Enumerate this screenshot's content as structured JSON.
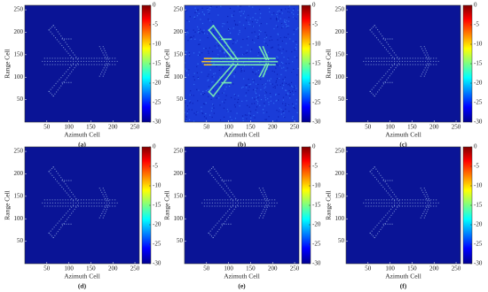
{
  "chart_data": [
    {
      "type": "heatmap",
      "xlabel": "Azimuth Cell",
      "ylabel": "Range Cell",
      "caption": "(a)",
      "xlim": [
        0,
        260
      ],
      "ylim": [
        0,
        260
      ],
      "xticks": [
        50,
        100,
        150,
        200,
        250
      ],
      "yticks": [
        50,
        100,
        150,
        200,
        250
      ],
      "clim": [
        -30,
        0
      ],
      "cticks": [
        0,
        -5,
        -10,
        -15,
        -20,
        -25,
        -30
      ],
      "colormap": "jet",
      "background": "#0a1496",
      "color": "#8fa8e0"
    },
    {
      "type": "heatmap",
      "xlabel": "Azimuth Cell",
      "ylabel": "Range Cell",
      "caption": "(b)",
      "xlim": [
        0,
        260
      ],
      "ylim": [
        0,
        260
      ],
      "xticks": [
        50,
        100,
        150,
        200,
        250
      ],
      "yticks": [
        50,
        100,
        150,
        200,
        250
      ],
      "clim": [
        -30,
        0
      ],
      "cticks": [
        0,
        -5,
        -10,
        -15,
        -20,
        -25,
        -30
      ],
      "colormap": "jet",
      "background": "#1a3cd8",
      "color": "#7cf0b0"
    },
    {
      "type": "heatmap",
      "xlabel": "Azimuth Cell",
      "ylabel": "Range Cell",
      "caption": "(c)",
      "xlim": [
        0,
        260
      ],
      "ylim": [
        0,
        260
      ],
      "xticks": [
        50,
        100,
        150,
        200,
        250
      ],
      "yticks": [
        50,
        100,
        150,
        200,
        250
      ],
      "clim": [
        -30,
        0
      ],
      "cticks": [
        0,
        -5,
        -10,
        -15,
        -20,
        -25,
        -30
      ],
      "colormap": "jet",
      "background": "#0a1496",
      "color": "#8fa8e0"
    },
    {
      "type": "heatmap",
      "xlabel": "Azimuth Cell",
      "ylabel": "Range Cell",
      "caption": "(d)",
      "xlim": [
        0,
        260
      ],
      "ylim": [
        0,
        260
      ],
      "xticks": [
        50,
        100,
        150,
        200,
        250
      ],
      "yticks": [
        50,
        100,
        150,
        200,
        250
      ],
      "clim": [
        -30,
        0
      ],
      "cticks": [
        0,
        -5,
        -10,
        -15,
        -20,
        -25,
        -30
      ],
      "colormap": "jet",
      "background": "#0a1496",
      "color": "#8fa8e0"
    },
    {
      "type": "heatmap",
      "xlabel": "Azimuth Cell",
      "ylabel": "Range Cell",
      "caption": "(e)",
      "xlim": [
        0,
        260
      ],
      "ylim": [
        0,
        260
      ],
      "xticks": [
        50,
        100,
        150,
        200,
        250
      ],
      "yticks": [
        50,
        100,
        150,
        200,
        250
      ],
      "clim": [
        -30,
        0
      ],
      "cticks": [
        0,
        -5,
        -10,
        -15,
        -20,
        -25,
        -30
      ],
      "colormap": "jet",
      "background": "#0a1496",
      "color": "#8fa8e0"
    },
    {
      "type": "heatmap",
      "xlabel": "Azimuth Cell",
      "ylabel": "Range Cell",
      "caption": "(f)",
      "xlim": [
        0,
        260
      ],
      "ylim": [
        0,
        260
      ],
      "xticks": [
        50,
        100,
        150,
        200,
        250
      ],
      "yticks": [
        50,
        100,
        150,
        200,
        250
      ],
      "clim": [
        -30,
        0
      ],
      "cticks": [
        0,
        -5,
        -10,
        -15,
        -20,
        -25,
        -30
      ],
      "colormap": "jet",
      "background": "#0a1496",
      "color": "#8fa8e0"
    }
  ]
}
